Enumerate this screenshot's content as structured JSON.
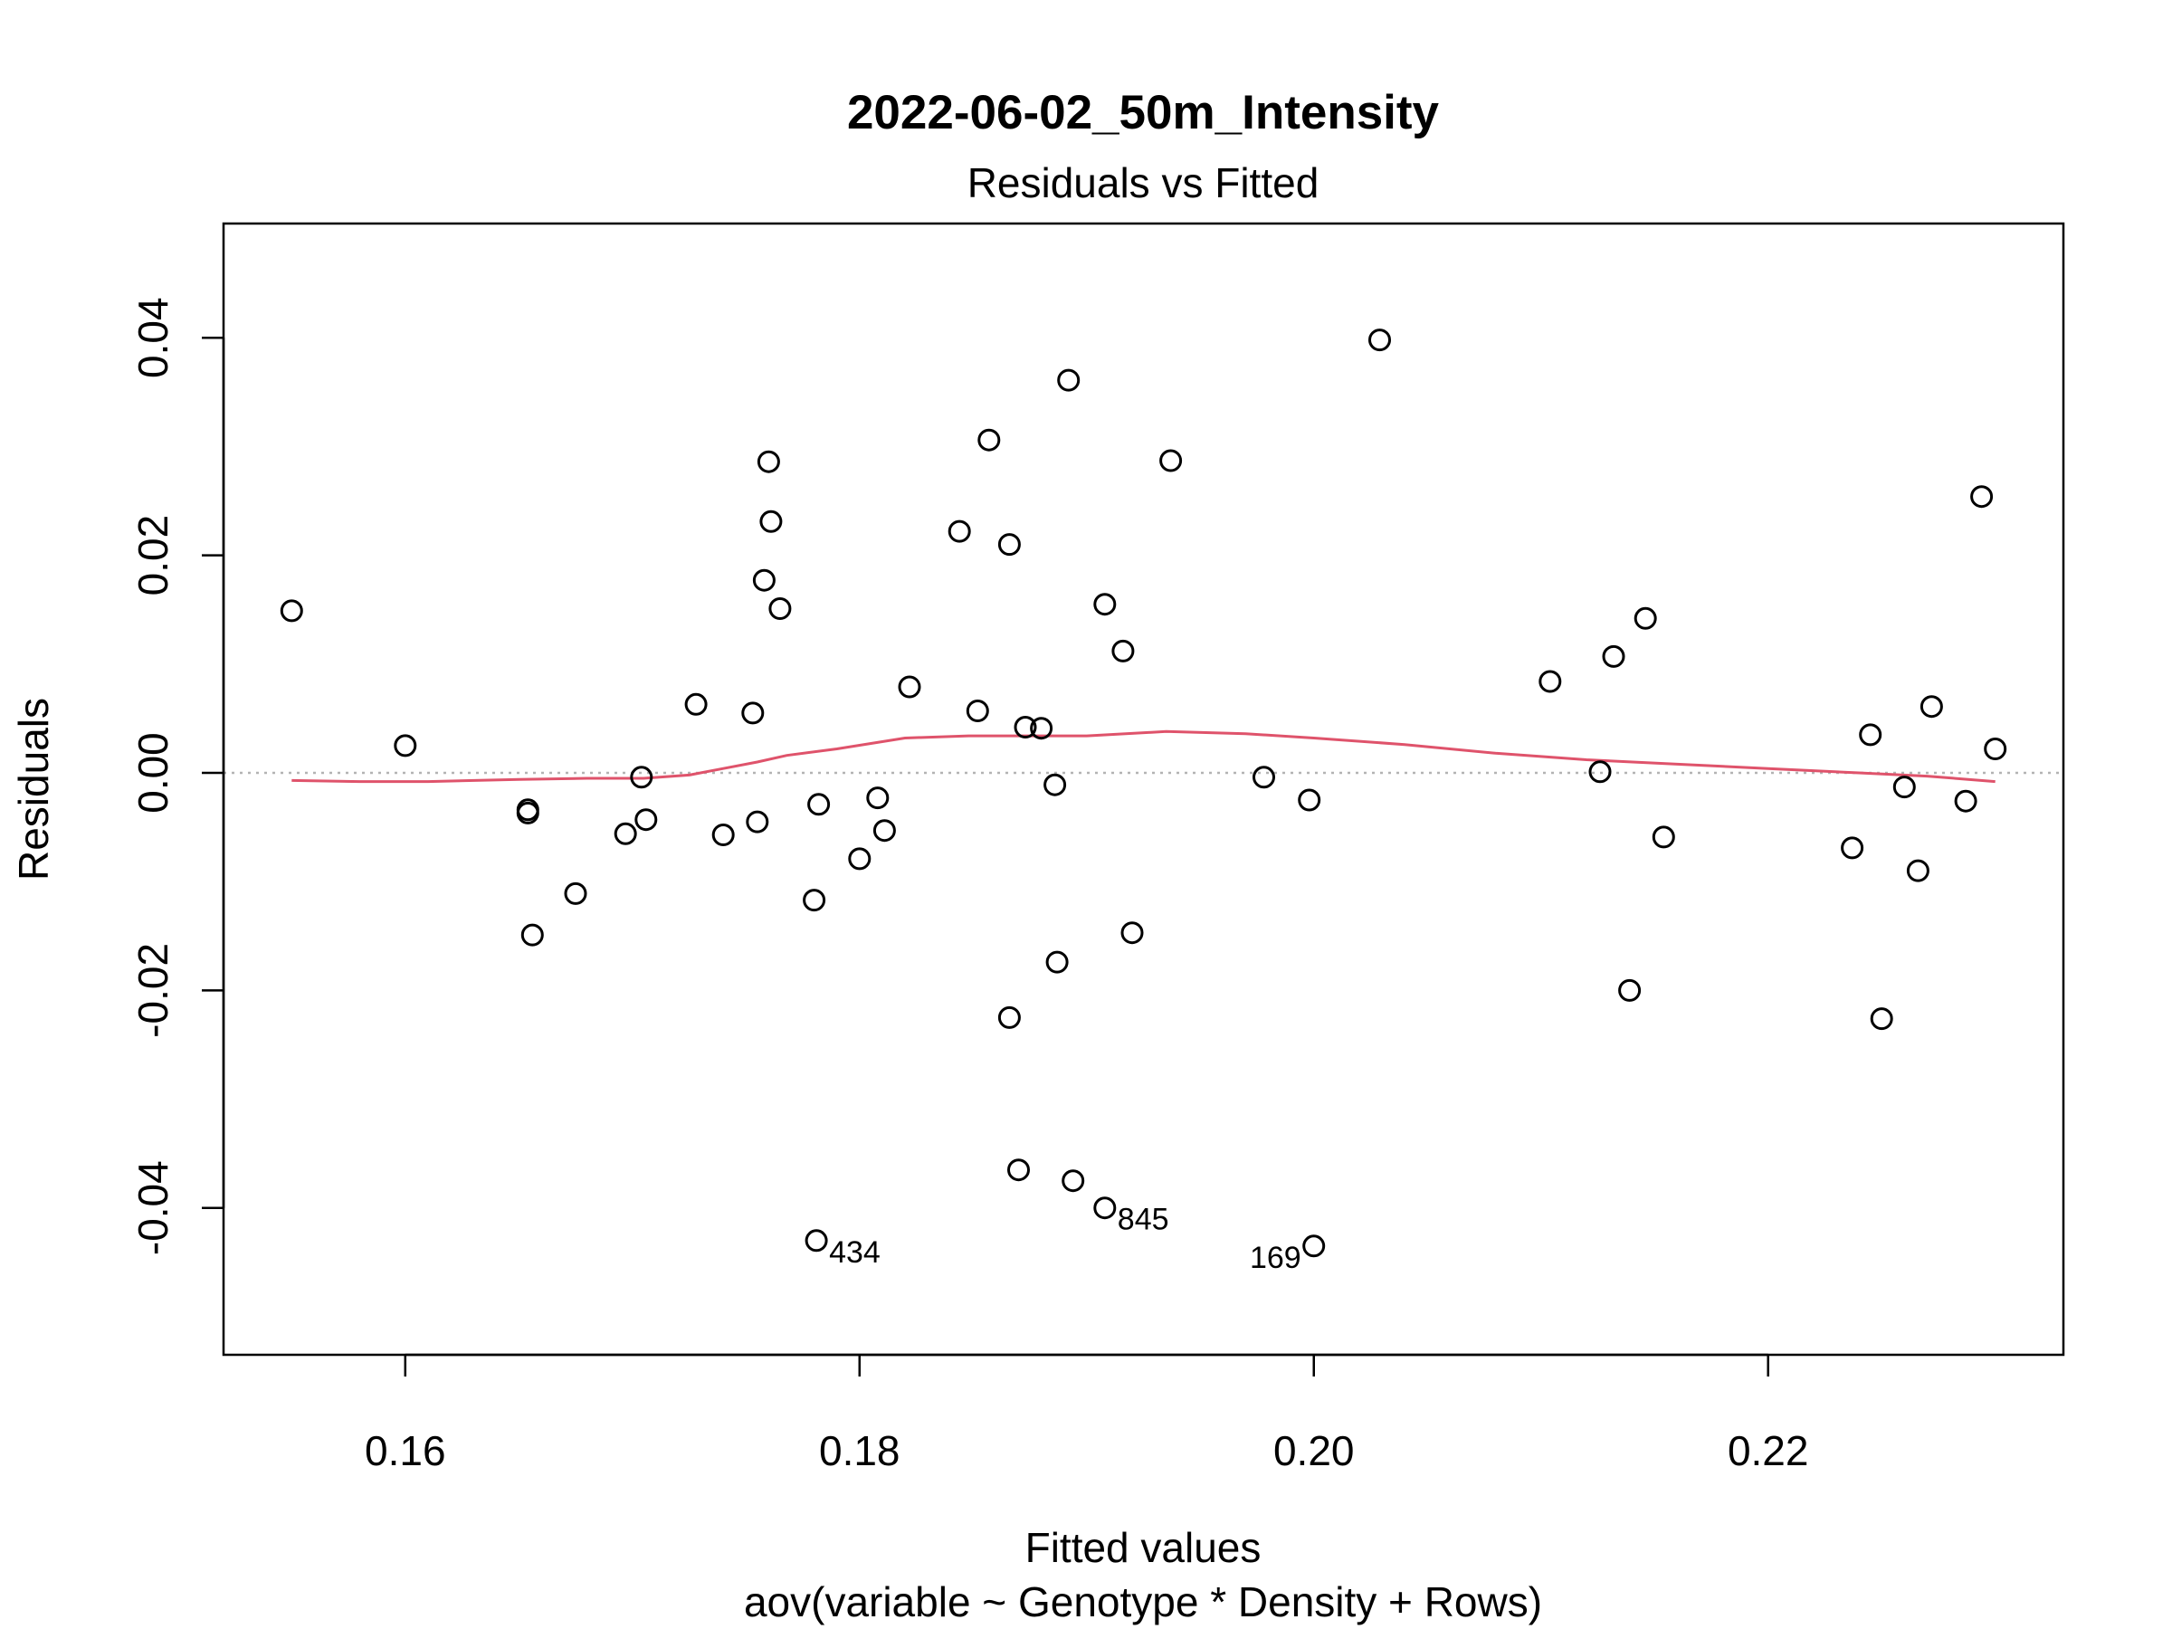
{
  "chart_data": {
    "type": "scatter",
    "title": "2022-06-02_50m_Intensity",
    "subtitle": "Residuals vs Fitted",
    "xlabel": "Fitted values",
    "xlabel2": "aov(variable ~ Genotype * Density + Rows)",
    "ylabel": "Residuals",
    "xlim": [
      0.152,
      0.233
    ],
    "ylim": [
      -0.0535,
      0.0505
    ],
    "xticks": [
      0.16,
      0.18,
      0.2,
      0.22
    ],
    "xtick_labels": [
      "0.16",
      "0.18",
      "0.20",
      "0.22"
    ],
    "yticks": [
      -0.04,
      -0.02,
      0.0,
      0.02,
      0.04
    ],
    "ytick_labels": [
      "-0.04",
      "-0.02",
      "0.00",
      "0.02",
      "0.04"
    ],
    "grid": false,
    "reference_line": {
      "y": 0,
      "style": "dotted",
      "color": "#b3b3b3"
    },
    "points": [
      {
        "x": 0.155,
        "y": 0.0149
      },
      {
        "x": 0.16,
        "y": 0.0025
      },
      {
        "x": 0.1654,
        "y": -0.0034
      },
      {
        "x": 0.1654,
        "y": -0.0037
      },
      {
        "x": 0.1656,
        "y": -0.0149
      },
      {
        "x": 0.1675,
        "y": -0.0111
      },
      {
        "x": 0.1697,
        "y": -0.0056
      },
      {
        "x": 0.1704,
        "y": -0.0004
      },
      {
        "x": 0.1706,
        "y": -0.0043
      },
      {
        "x": 0.1728,
        "y": 0.0063
      },
      {
        "x": 0.174,
        "y": -0.0057
      },
      {
        "x": 0.1753,
        "y": 0.0055
      },
      {
        "x": 0.1755,
        "y": -0.0045
      },
      {
        "x": 0.1758,
        "y": 0.0177
      },
      {
        "x": 0.176,
        "y": 0.0286
      },
      {
        "x": 0.1761,
        "y": 0.0231
      },
      {
        "x": 0.1765,
        "y": 0.0151
      },
      {
        "x": 0.178,
        "y": -0.0117
      },
      {
        "x": 0.1782,
        "y": -0.0029
      },
      {
        "x": 0.1781,
        "y": -0.043,
        "label": "434"
      },
      {
        "x": 0.18,
        "y": -0.0079
      },
      {
        "x": 0.1808,
        "y": -0.0023
      },
      {
        "x": 0.1811,
        "y": -0.0053
      },
      {
        "x": 0.1822,
        "y": 0.0079
      },
      {
        "x": 0.1844,
        "y": 0.0222
      },
      {
        "x": 0.1852,
        "y": 0.0057
      },
      {
        "x": 0.1857,
        "y": 0.0306
      },
      {
        "x": 0.1866,
        "y": 0.021
      },
      {
        "x": 0.1866,
        "y": -0.0225
      },
      {
        "x": 0.187,
        "y": -0.0365
      },
      {
        "x": 0.1873,
        "y": 0.0042
      },
      {
        "x": 0.188,
        "y": 0.0041
      },
      {
        "x": 0.1886,
        "y": -0.0011
      },
      {
        "x": 0.1887,
        "y": -0.0174
      },
      {
        "x": 0.1892,
        "y": 0.0361
      },
      {
        "x": 0.1894,
        "y": -0.0375
      },
      {
        "x": 0.1908,
        "y": 0.0155
      },
      {
        "x": 0.1908,
        "y": -0.04,
        "label": "845"
      },
      {
        "x": 0.1916,
        "y": 0.0112
      },
      {
        "x": 0.192,
        "y": -0.0147
      },
      {
        "x": 0.1937,
        "y": 0.0287
      },
      {
        "x": 0.1978,
        "y": -0.0004
      },
      {
        "x": 0.1998,
        "y": -0.0025
      },
      {
        "x": 0.2,
        "y": -0.0435,
        "label": "169"
      },
      {
        "x": 0.2029,
        "y": 0.0398
      },
      {
        "x": 0.2104,
        "y": 0.0084
      },
      {
        "x": 0.2126,
        "y": 0.0001
      },
      {
        "x": 0.2132,
        "y": 0.0107
      },
      {
        "x": 0.2139,
        "y": -0.02
      },
      {
        "x": 0.2146,
        "y": 0.0142
      },
      {
        "x": 0.2154,
        "y": -0.0059
      },
      {
        "x": 0.2237,
        "y": -0.0069
      },
      {
        "x": 0.2245,
        "y": 0.0035
      },
      {
        "x": 0.225,
        "y": -0.0226
      },
      {
        "x": 0.226,
        "y": -0.0013
      },
      {
        "x": 0.2266,
        "y": -0.009
      },
      {
        "x": 0.2272,
        "y": 0.0061
      },
      {
        "x": 0.2287,
        "y": -0.0026
      },
      {
        "x": 0.2294,
        "y": 0.0254
      },
      {
        "x": 0.23,
        "y": 0.0022
      }
    ],
    "smooth_line": {
      "color": "#df536b",
      "points": [
        [
          0.155,
          -0.0007
        ],
        [
          0.158,
          -0.0008
        ],
        [
          0.161,
          -0.0008
        ],
        [
          0.165,
          -0.0006
        ],
        [
          0.168,
          -0.0005
        ],
        [
          0.1705,
          -0.0005
        ],
        [
          0.1725,
          -0.0002
        ],
        [
          0.174,
          0.0004
        ],
        [
          0.1755,
          0.001
        ],
        [
          0.1768,
          0.0016
        ],
        [
          0.179,
          0.0022
        ],
        [
          0.182,
          0.0032
        ],
        [
          0.1848,
          0.0034
        ],
        [
          0.187,
          0.0034
        ],
        [
          0.19,
          0.0034
        ],
        [
          0.1935,
          0.0038
        ],
        [
          0.197,
          0.0036
        ],
        [
          0.2,
          0.0032
        ],
        [
          0.204,
          0.0026
        ],
        [
          0.208,
          0.0018
        ],
        [
          0.212,
          0.0012
        ],
        [
          0.216,
          0.0008
        ],
        [
          0.22,
          0.0004
        ],
        [
          0.224,
          0.0
        ],
        [
          0.227,
          -0.0003
        ],
        [
          0.23,
          -0.0008
        ]
      ]
    }
  }
}
